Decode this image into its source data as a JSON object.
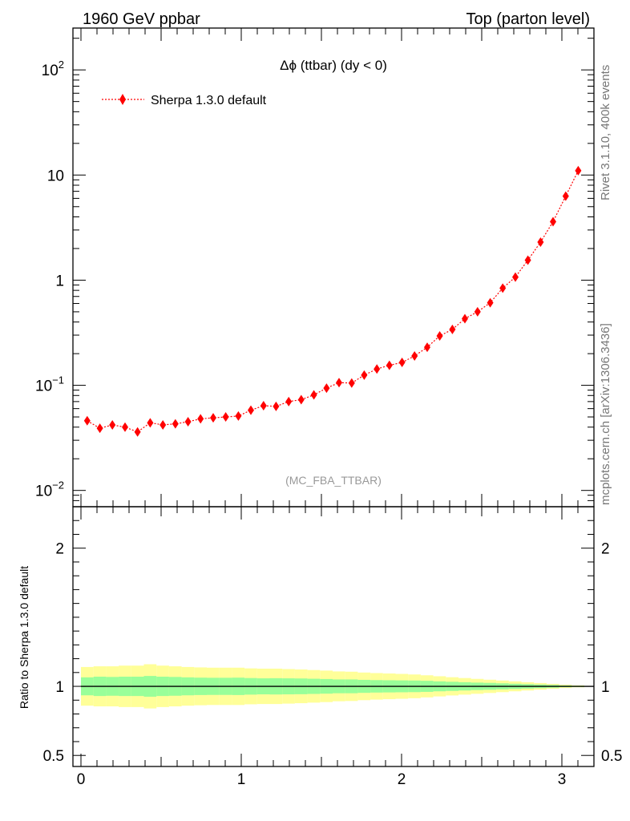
{
  "header": {
    "left": "1960 GeV ppbar",
    "right": "Top (parton level)"
  },
  "side_texts": {
    "rivet": "Rivet 3.1.10,  400k events",
    "mcplots": "mcplots.cern.ch [arXiv:1306.3436]"
  },
  "colors": {
    "series": "#ff0000",
    "band_inner": "#99ff99",
    "band_outer": "#ffff99",
    "watermark": "#999999"
  },
  "chart_data": [
    {
      "type": "scatter",
      "scale": "log",
      "title": "Δϕ (ttbar) (dy < 0)",
      "watermark": "(MC_FBA_TTBAR)",
      "xlim": [
        -0.05,
        3.2
      ],
      "ylim": [
        0.007,
        250
      ],
      "yticks": [
        {
          "value": 0.01,
          "base": "10",
          "exp": "−2"
        },
        {
          "value": 0.1,
          "base": "10",
          "exp": "−1"
        },
        {
          "value": 1,
          "base": "1",
          "exp": ""
        },
        {
          "value": 10,
          "base": "10",
          "exp": ""
        },
        {
          "value": 100,
          "base": "10",
          "exp": "2"
        }
      ],
      "legend": "top-left",
      "series": [
        {
          "name": "Sherpa 1.3.0 default",
          "x": [
            0.039,
            0.118,
            0.196,
            0.275,
            0.353,
            0.432,
            0.511,
            0.589,
            0.668,
            0.746,
            0.825,
            0.903,
            0.982,
            1.06,
            1.139,
            1.217,
            1.296,
            1.374,
            1.453,
            1.532,
            1.61,
            1.689,
            1.767,
            1.846,
            1.924,
            2.003,
            2.081,
            2.16,
            2.238,
            2.317,
            2.395,
            2.474,
            2.553,
            2.631,
            2.71,
            2.788,
            2.867,
            2.945,
            3.024,
            3.102
          ],
          "values": [
            0.046,
            0.039,
            0.042,
            0.04,
            0.036,
            0.044,
            0.042,
            0.043,
            0.045,
            0.048,
            0.049,
            0.05,
            0.051,
            0.058,
            0.064,
            0.063,
            0.07,
            0.073,
            0.081,
            0.094,
            0.106,
            0.105,
            0.125,
            0.143,
            0.155,
            0.165,
            0.19,
            0.23,
            0.295,
            0.34,
            0.43,
            0.5,
            0.61,
            0.84,
            1.07,
            1.55,
            2.3,
            3.6,
            6.3,
            11.0
          ],
          "errors": [
            0.003,
            0.002,
            0.002,
            0.002,
            0.003,
            0.003,
            0.002,
            0.002,
            0.002,
            0.002,
            0.002,
            0.002,
            0.002,
            0.002,
            0.003,
            0.002,
            0.003,
            0.003,
            0.003,
            0.003,
            0.004,
            0.004,
            0.004,
            0.005,
            0.005,
            0.005,
            0.006,
            0.007,
            0.008,
            0.009,
            0.01,
            0.012,
            0.014,
            0.017,
            0.02,
            0.026,
            0.034,
            0.048,
            0.07,
            0.11
          ]
        }
      ]
    },
    {
      "type": "area",
      "ylabel": "Ratio to Sherpa 1.3.0 default",
      "xlim": [
        -0.05,
        3.2
      ],
      "ylim": [
        0.42,
        2.3
      ],
      "xticks": [
        "0",
        "1",
        "2",
        "3"
      ],
      "xtick_values": [
        0,
        1,
        2,
        3
      ],
      "yticks": [
        "0.5",
        "1",
        "2"
      ],
      "ytick_values": [
        0.5,
        1,
        2
      ],
      "reference_line": 1,
      "bins": [
        0.0,
        0.0785,
        0.157,
        0.2355,
        0.314,
        0.3925,
        0.471,
        0.5495,
        0.628,
        0.7065,
        0.785,
        0.8635,
        0.942,
        1.0205,
        1.099,
        1.1775,
        1.256,
        1.3345,
        1.413,
        1.4915,
        1.57,
        1.6485,
        1.727,
        1.8055,
        1.884,
        1.9625,
        2.041,
        2.1195,
        2.198,
        2.2765,
        2.355,
        2.4335,
        2.512,
        2.5905,
        2.669,
        2.7475,
        2.826,
        2.9045,
        2.983,
        3.0615,
        3.14
      ],
      "band_inner_halfwidth": [
        0.065,
        0.07,
        0.068,
        0.07,
        0.07,
        0.075,
        0.07,
        0.068,
        0.065,
        0.063,
        0.062,
        0.062,
        0.063,
        0.06,
        0.058,
        0.059,
        0.058,
        0.057,
        0.055,
        0.053,
        0.05,
        0.05,
        0.047,
        0.045,
        0.044,
        0.043,
        0.042,
        0.04,
        0.036,
        0.033,
        0.03,
        0.027,
        0.025,
        0.022,
        0.019,
        0.016,
        0.013,
        0.01,
        0.006,
        0.004
      ],
      "band_outer_halfwidth": [
        0.14,
        0.145,
        0.145,
        0.15,
        0.15,
        0.16,
        0.15,
        0.145,
        0.14,
        0.137,
        0.135,
        0.135,
        0.135,
        0.13,
        0.128,
        0.128,
        0.125,
        0.122,
        0.118,
        0.114,
        0.108,
        0.106,
        0.1,
        0.096,
        0.093,
        0.09,
        0.086,
        0.08,
        0.073,
        0.066,
        0.06,
        0.054,
        0.048,
        0.042,
        0.036,
        0.03,
        0.024,
        0.018,
        0.012,
        0.007
      ]
    }
  ]
}
